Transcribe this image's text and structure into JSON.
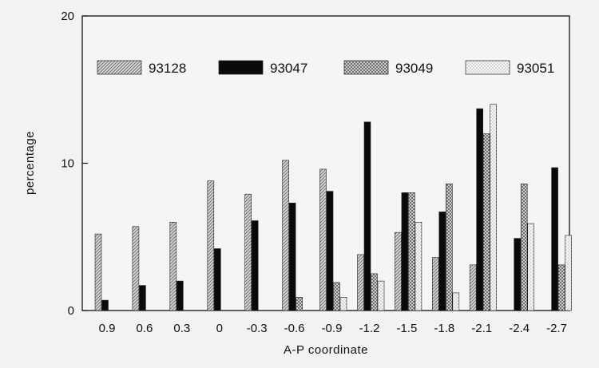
{
  "chart_data": {
    "type": "bar",
    "xlabel": "A-P coordinate",
    "ylabel": "percentage",
    "ylim": [
      0,
      20
    ],
    "yticks": [
      0,
      10,
      20
    ],
    "categories": [
      "0.9",
      "0.6",
      "0.3",
      "0",
      "-0.3",
      "-0.6",
      "-0.9",
      "-1.2",
      "-1.5",
      "-1.8",
      "-2.1",
      "-2.4",
      "-2.7"
    ],
    "series": [
      {
        "name": "93128",
        "pattern": "diag",
        "values": [
          5.2,
          5.7,
          6.0,
          8.8,
          7.9,
          10.2,
          9.6,
          3.8,
          5.3,
          3.6,
          3.1,
          0,
          0
        ]
      },
      {
        "name": "93047",
        "pattern": "black",
        "values": [
          0.7,
          1.7,
          2.0,
          4.2,
          6.1,
          7.3,
          8.1,
          12.8,
          8.0,
          6.7,
          13.7,
          4.9,
          9.7
        ]
      },
      {
        "name": "93049",
        "pattern": "cross",
        "values": [
          0,
          0,
          0,
          0,
          0,
          0.9,
          1.9,
          2.5,
          8.0,
          8.6,
          12.0,
          8.6,
          3.1
        ]
      },
      {
        "name": "93051",
        "pattern": "dots",
        "values": [
          0,
          0,
          0,
          0,
          0,
          0,
          0.9,
          2.0,
          6.0,
          1.2,
          14.0,
          5.9,
          5.1
        ]
      }
    ],
    "legend_position": "top"
  }
}
